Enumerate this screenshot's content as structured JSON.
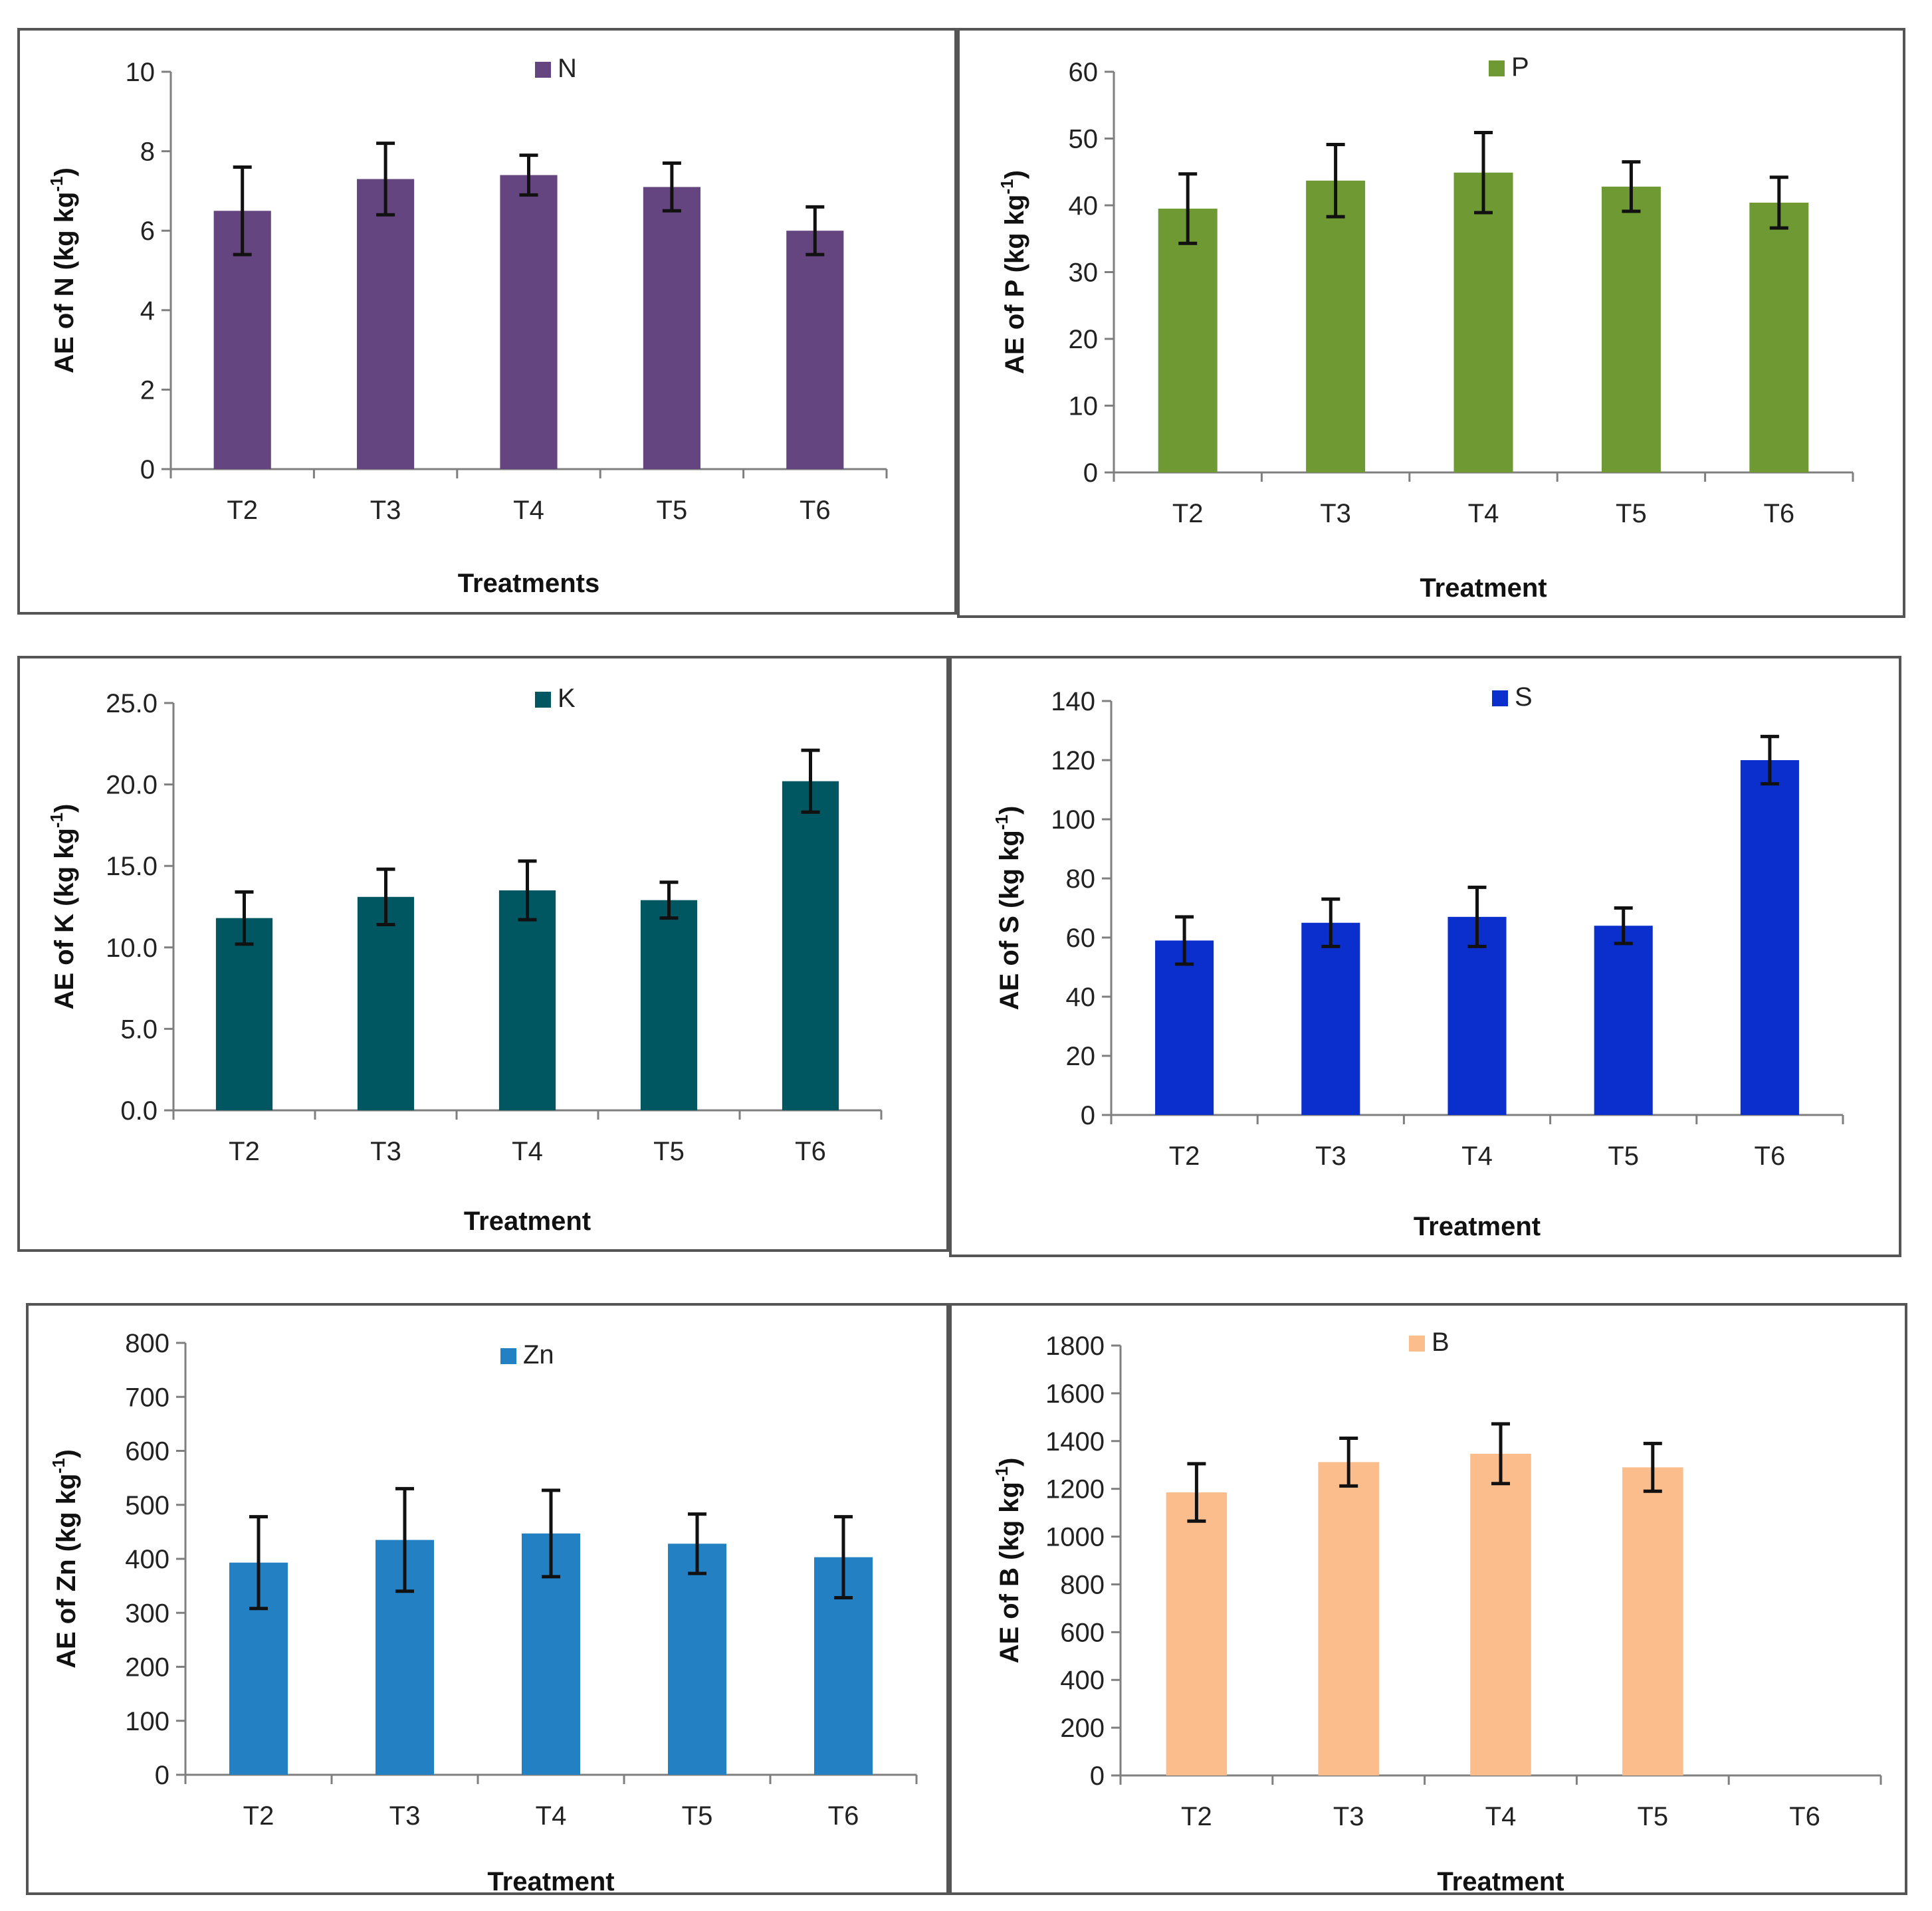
{
  "chart_data": [
    {
      "id": "n",
      "type": "bar",
      "title": "",
      "legend": "N",
      "color": "#654580",
      "categories": [
        "T2",
        "T3",
        "T4",
        "T5",
        "T6"
      ],
      "values": [
        6.5,
        7.3,
        7.4,
        7.1,
        6.0
      ],
      "errors": [
        1.1,
        0.9,
        0.5,
        0.6,
        0.6
      ],
      "ylim": [
        0,
        10
      ],
      "yticks": [
        0,
        2,
        4,
        6,
        8,
        10
      ],
      "ytick_labels": [
        "0",
        "2",
        "4",
        "6",
        "8",
        "10"
      ],
      "xlabel": "Treatments",
      "ylabel": "AE of N (kg kg",
      "ylabel_sup": "-1",
      "ylabel_end": ")"
    },
    {
      "id": "p",
      "type": "bar",
      "title": "",
      "legend": "P",
      "color": "#6f9a33",
      "categories": [
        "T2",
        "T3",
        "T4",
        "T5",
        "T6"
      ],
      "values": [
        39.5,
        43.7,
        44.9,
        42.8,
        40.4
      ],
      "errors": [
        5.2,
        5.4,
        6.0,
        3.7,
        3.8
      ],
      "ylim": [
        0,
        60
      ],
      "yticks": [
        0,
        10,
        20,
        30,
        40,
        50,
        60
      ],
      "ytick_labels": [
        "0",
        "10",
        "20",
        "30",
        "40",
        "50",
        "60"
      ],
      "xlabel": "Treatment",
      "ylabel": "AE of P (kg kg",
      "ylabel_sup": "-1",
      "ylabel_end": ")"
    },
    {
      "id": "k",
      "type": "bar",
      "title": "",
      "legend": "K",
      "color": "#005661",
      "categories": [
        "T2",
        "T3",
        "T4",
        "T5",
        "T6"
      ],
      "values": [
        11.8,
        13.1,
        13.5,
        12.9,
        20.2
      ],
      "errors": [
        1.6,
        1.7,
        1.8,
        1.1,
        1.9
      ],
      "ylim": [
        0,
        25
      ],
      "yticks": [
        0,
        5,
        10,
        15,
        20,
        25
      ],
      "ytick_labels": [
        "0.0",
        "5.0",
        "10.0",
        "15.0",
        "20.0",
        "25.0"
      ],
      "xlabel": "Treatment",
      "ylabel": "AE of K (kg kg",
      "ylabel_sup": "-1",
      "ylabel_end": ")"
    },
    {
      "id": "s",
      "type": "bar",
      "title": "",
      "legend": "S",
      "color": "#0a2fcc",
      "categories": [
        "T2",
        "T3",
        "T4",
        "T5",
        "T6"
      ],
      "values": [
        59,
        65,
        67,
        64,
        120
      ],
      "errors": [
        8,
        8,
        10,
        6,
        8
      ],
      "ylim": [
        0,
        140
      ],
      "yticks": [
        0,
        20,
        40,
        60,
        80,
        100,
        120,
        140
      ],
      "ytick_labels": [
        "0",
        "20",
        "40",
        "60",
        "80",
        "100",
        "120",
        "140"
      ],
      "xlabel": "Treatment",
      "ylabel": "AE of S (kg kg",
      "ylabel_sup": "-1",
      "ylabel_end": ")"
    },
    {
      "id": "zn",
      "type": "bar",
      "title": "",
      "legend": "Zn",
      "color": "#2380c2",
      "categories": [
        "T2",
        "T3",
        "T4",
        "T5",
        "T6"
      ],
      "values": [
        393,
        435,
        447,
        428,
        403
      ],
      "errors": [
        85,
        95,
        80,
        55,
        75
      ],
      "ylim": [
        0,
        800
      ],
      "yticks": [
        0,
        100,
        200,
        300,
        400,
        500,
        600,
        700,
        800
      ],
      "ytick_labels": [
        "0",
        "100",
        "200",
        "300",
        "400",
        "500",
        "600",
        "700",
        "800"
      ],
      "xlabel": "Treatment",
      "ylabel": "AE of Zn (kg kg",
      "ylabel_sup": "-1",
      "ylabel_end": ")"
    },
    {
      "id": "b",
      "type": "bar",
      "title": "",
      "legend": "B",
      "color": "#fbbd8b",
      "categories": [
        "T2",
        "T3",
        "T4",
        "T5",
        "T6"
      ],
      "values": [
        1185,
        1312,
        1347,
        1290,
        null
      ],
      "errors": [
        120,
        100,
        125,
        100,
        null
      ],
      "ylim": [
        0,
        1800
      ],
      "yticks": [
        0,
        200,
        400,
        600,
        800,
        1000,
        1200,
        1400,
        1600,
        1800
      ],
      "ytick_labels": [
        "0",
        "200",
        "400",
        "600",
        "800",
        "1000",
        "1200",
        "1400",
        "1600",
        "1800"
      ],
      "xlabel": "Treatment",
      "ylabel": "AE of B (kg kg",
      "ylabel_sup": "-1",
      "ylabel_end": ")"
    }
  ]
}
